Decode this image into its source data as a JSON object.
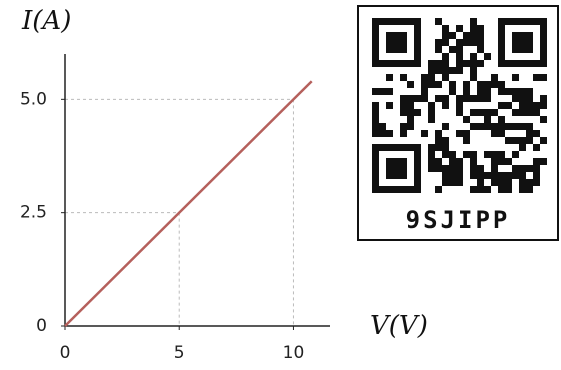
{
  "chart_data": {
    "type": "line",
    "x_label": "V(V)",
    "y_label": "I(A)",
    "x": [
      0,
      10.8
    ],
    "values": [
      0,
      5.4
    ],
    "color": "#b5605c",
    "xlim": [
      0,
      11.6
    ],
    "ylim": [
      0,
      6
    ],
    "xticks": [
      0,
      5,
      10
    ],
    "yticks": [
      0,
      2.5,
      {
        "value": 5,
        "label": "5.0"
      }
    ],
    "guides": true
  },
  "qr_code": {
    "label": "9SJIPP"
  }
}
